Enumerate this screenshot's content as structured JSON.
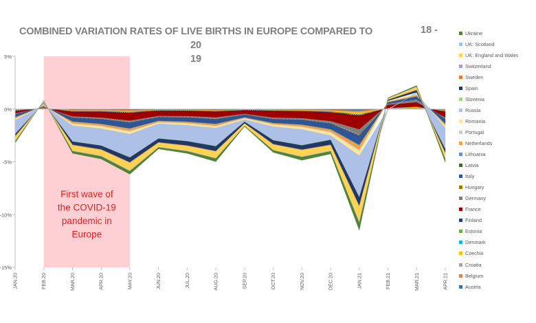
{
  "header": {
    "title": "COMBINED VARIATION RATES OF LIVE BIRTHS IN EUROPE COMPARED TO 20\n19",
    "page_number": "18 -"
  },
  "annotation": {
    "text": "First wave of the COVID-19 pandemic in Europe",
    "from": "FEB.20",
    "to": "MAY.20",
    "color": "#fec8cb",
    "text_color": "#e02020"
  },
  "chart_data": {
    "type": "area",
    "stacked": true,
    "title": "COMBINED VARIATION RATES OF LIVE BIRTHS IN EUROPE COMPARED TO 20\n19",
    "categories": [
      "JAN.20",
      "FEB.20",
      "MAR.20",
      "APR.20",
      "MAY.20",
      "JUN.20",
      "JUL.20",
      "AUG.20",
      "SEP.20",
      "OCT.20",
      "NOV.20",
      "DEC.20",
      "JAN.21",
      "FEB.21",
      "MAR.21",
      "APR.21"
    ],
    "ylim": [
      -15,
      5
    ],
    "yticks": [
      "5%",
      "0%",
      "-5%",
      "-10%",
      "-15%"
    ],
    "ytick_values": [
      5,
      0,
      -5,
      -10,
      -15
    ],
    "grid": false,
    "legend_position": "right",
    "series": [
      {
        "name": "Austria",
        "color": "#2e75b6",
        "values": [
          -0.05,
          0.02,
          -0.08,
          -0.07,
          -0.1,
          -0.05,
          -0.05,
          -0.08,
          -0.03,
          -0.04,
          -0.06,
          -0.08,
          -0.15,
          0.04,
          0.03,
          -0.07
        ]
      },
      {
        "name": "Belgium",
        "color": "#ed7d31",
        "values": [
          -0.03,
          0.02,
          -0.05,
          -0.05,
          -0.07,
          -0.03,
          -0.03,
          -0.04,
          -0.02,
          -0.03,
          -0.04,
          -0.06,
          -0.12,
          0.02,
          0.06,
          -0.05
        ]
      },
      {
        "name": "Croatia",
        "color": "#a5a5a5",
        "values": [
          -0.01,
          0.01,
          -0.02,
          -0.02,
          -0.02,
          -0.01,
          -0.01,
          -0.02,
          -0.01,
          -0.01,
          -0.01,
          -0.02,
          -0.04,
          0.0,
          0.01,
          -0.02
        ]
      },
      {
        "name": "Czechia",
        "color": "#ffc000",
        "values": [
          -0.03,
          0.03,
          -0.05,
          -0.06,
          -0.08,
          -0.02,
          -0.03,
          -0.05,
          -0.02,
          -0.04,
          -0.05,
          -0.07,
          -0.2,
          0.03,
          0.1,
          -0.05
        ]
      },
      {
        "name": "Denmark",
        "color": "#17b4e0",
        "values": [
          -0.01,
          0.01,
          -0.01,
          -0.01,
          -0.02,
          -0.01,
          -0.01,
          -0.01,
          -0.01,
          -0.01,
          -0.01,
          -0.01,
          -0.02,
          0.0,
          0.01,
          -0.01
        ]
      },
      {
        "name": "Estonia",
        "color": "#70ad47",
        "values": [
          -0.01,
          0.01,
          -0.01,
          -0.01,
          -0.01,
          -0.01,
          -0.01,
          -0.01,
          0.0,
          -0.01,
          -0.01,
          -0.01,
          -0.02,
          0.0,
          0.01,
          -0.01
        ]
      },
      {
        "name": "Finland",
        "color": "#264478",
        "values": [
          -0.03,
          0.01,
          -0.03,
          -0.04,
          -0.05,
          -0.03,
          -0.03,
          -0.04,
          -0.02,
          -0.03,
          -0.04,
          -0.05,
          -0.08,
          0.02,
          0.04,
          -0.04
        ]
      },
      {
        "name": "France",
        "color": "#9e0000",
        "values": [
          -0.25,
          0.06,
          -0.45,
          -0.55,
          -0.75,
          -0.5,
          -0.5,
          -0.55,
          -0.35,
          -0.65,
          -0.65,
          -0.85,
          -1.3,
          0.3,
          0.4,
          -0.55
        ]
      },
      {
        "name": "Germany",
        "color": "#7f7f7f",
        "values": [
          -0.05,
          0.03,
          -0.08,
          -0.1,
          -0.13,
          -0.07,
          -0.08,
          -0.1,
          -0.05,
          -0.1,
          -0.1,
          -0.15,
          -0.5,
          0.08,
          0.2,
          -0.08
        ]
      },
      {
        "name": "Hungary",
        "color": "#9e7700",
        "values": [
          -0.03,
          0.03,
          -0.03,
          -0.03,
          -0.04,
          -0.03,
          -0.03,
          -0.04,
          -0.02,
          -0.03,
          -0.04,
          -0.05,
          -0.08,
          0.01,
          0.04,
          -0.04
        ]
      },
      {
        "name": "Italy",
        "color": "#2f5597",
        "values": [
          -0.25,
          0.05,
          -0.35,
          -0.45,
          -0.55,
          -0.35,
          -0.4,
          -0.45,
          -0.25,
          -0.35,
          -0.45,
          -0.55,
          -0.85,
          0.15,
          0.3,
          -0.45
        ]
      },
      {
        "name": "Latvia",
        "color": "#43682b",
        "values": [
          -0.02,
          0.01,
          -0.02,
          -0.02,
          -0.02,
          -0.01,
          -0.02,
          -0.02,
          -0.01,
          -0.02,
          -0.02,
          -0.02,
          -0.04,
          0.0,
          0.01,
          -0.02
        ]
      },
      {
        "name": "Lithuania",
        "color": "#698ed0",
        "values": [
          -0.03,
          0.01,
          -0.03,
          -0.03,
          -0.04,
          -0.02,
          -0.03,
          -0.03,
          -0.02,
          -0.03,
          -0.03,
          -0.04,
          -0.06,
          0.01,
          0.02,
          -0.03
        ]
      },
      {
        "name": "Netherlands",
        "color": "#f1a140",
        "values": [
          -0.1,
          0.04,
          -0.15,
          -0.15,
          -0.2,
          -0.1,
          -0.1,
          -0.15,
          -0.05,
          -0.1,
          -0.15,
          -0.2,
          -0.4,
          0.05,
          0.1,
          -0.15
        ]
      },
      {
        "name": "Portugal",
        "color": "#cbcbcb",
        "values": [
          -0.05,
          0.02,
          -0.05,
          -0.06,
          -0.08,
          -0.04,
          -0.05,
          -0.06,
          -0.03,
          -0.05,
          -0.06,
          -0.08,
          -0.15,
          0.02,
          0.05,
          -0.06
        ]
      },
      {
        "name": "Romania",
        "color": "#ffe699",
        "values": [
          -0.1,
          0.03,
          -0.15,
          -0.2,
          -0.2,
          -0.1,
          -0.15,
          -0.15,
          -0.1,
          -0.15,
          -0.2,
          -0.25,
          -0.4,
          0.05,
          0.1,
          -0.15
        ]
      },
      {
        "name": "Russia",
        "color": "#adc1e6",
        "values": [
          -1.3,
          0.18,
          -1.5,
          -1.6,
          -2.2,
          -1.4,
          -1.5,
          -1.7,
          -0.2,
          -1.3,
          -1.5,
          -0.4,
          -3.9,
          -0.1,
          0.1,
          -2.0
        ]
      },
      {
        "name": "Slovenia",
        "color": "#a9d18e",
        "values": [
          -0.02,
          0.01,
          -0.02,
          -0.02,
          -0.03,
          -0.02,
          -0.02,
          -0.03,
          -0.01,
          -0.02,
          -0.02,
          -0.03,
          -0.05,
          0.01,
          0.02,
          -0.02
        ]
      },
      {
        "name": "Spain",
        "color": "#203864",
        "values": [
          -0.2,
          0.05,
          -0.3,
          -0.35,
          -0.45,
          -0.35,
          -0.4,
          -0.45,
          -0.15,
          -0.35,
          -0.4,
          -0.45,
          -0.8,
          0.1,
          0.2,
          -0.35
        ]
      },
      {
        "name": "Sweden",
        "color": "#e67c2e",
        "values": [
          -0.03,
          0.02,
          -0.03,
          -0.03,
          -0.04,
          -0.03,
          -0.03,
          -0.03,
          -0.02,
          -0.03,
          -0.03,
          -0.04,
          -0.05,
          0.01,
          0.02,
          -0.03
        ]
      },
      {
        "name": "Switzerland",
        "color": "#a49ec8",
        "values": [
          -0.02,
          0.01,
          -0.03,
          -0.03,
          -0.04,
          -0.02,
          -0.02,
          -0.03,
          -0.01,
          -0.02,
          -0.03,
          -0.03,
          -0.06,
          0.01,
          0.03,
          -0.03
        ]
      },
      {
        "name": "UK: England and Wales",
        "color": "#ffd24f",
        "values": [
          -0.4,
          0.1,
          -0.5,
          -0.55,
          -0.7,
          -0.4,
          -0.45,
          -0.6,
          -0.2,
          -0.5,
          -0.6,
          -0.5,
          -1.4,
          0.1,
          0.25,
          -0.5
        ]
      },
      {
        "name": "UK: Scotland",
        "color": "#9dc3e6",
        "values": [
          -0.05,
          0.02,
          -0.05,
          -0.05,
          -0.06,
          -0.03,
          -0.05,
          -0.05,
          -0.02,
          -0.04,
          -0.05,
          -0.06,
          -0.12,
          0.02,
          0.04,
          -0.05
        ]
      },
      {
        "name": "Ukraine",
        "color": "#548235",
        "values": [
          -0.15,
          0.03,
          -0.2,
          -0.25,
          -0.3,
          -0.15,
          -0.2,
          -0.3,
          -0.05,
          -0.2,
          -0.3,
          -0.25,
          -0.7,
          0.05,
          0.1,
          -0.3
        ]
      }
    ]
  }
}
